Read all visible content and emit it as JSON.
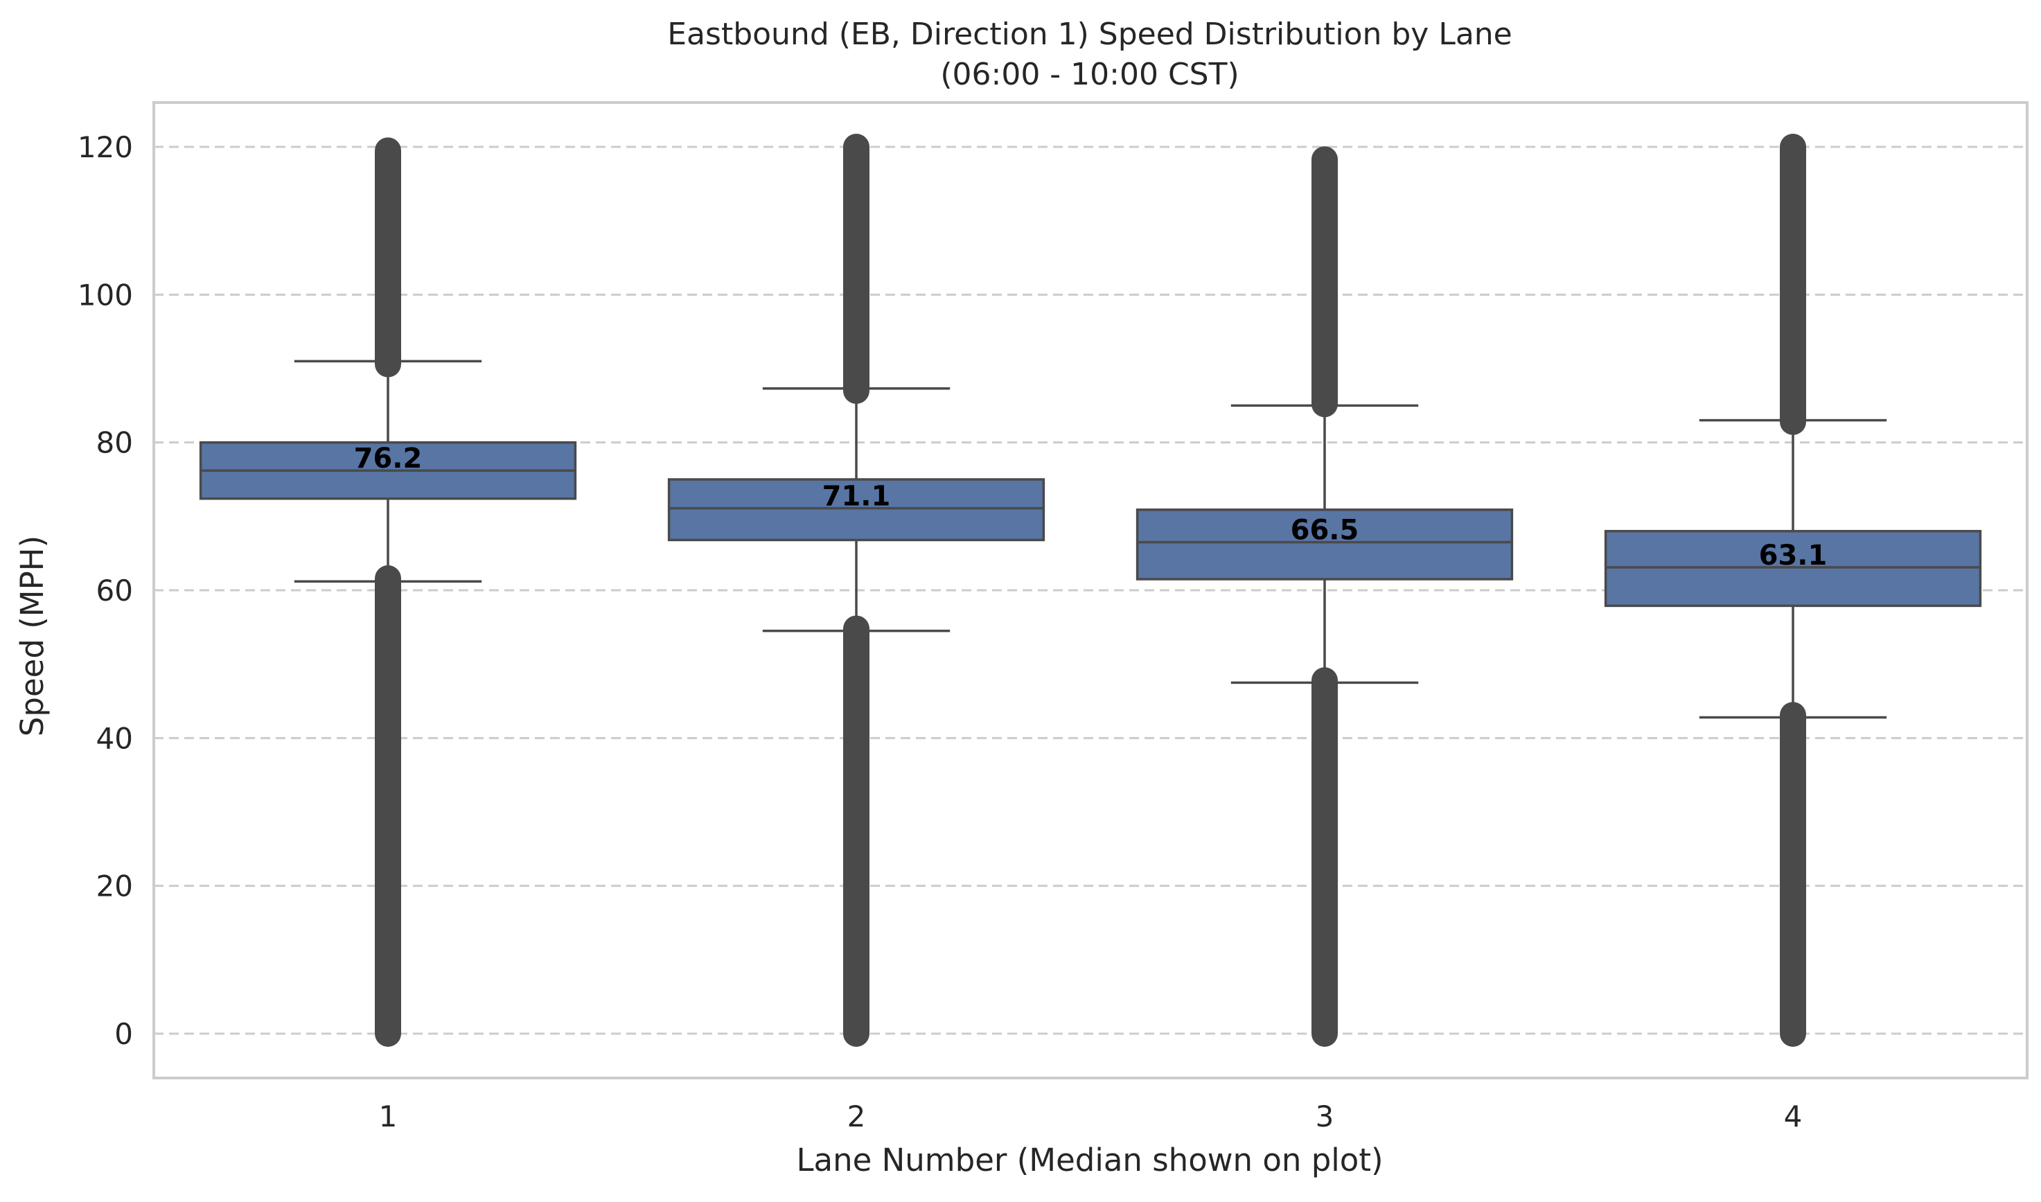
{
  "chart_data": {
    "type": "box",
    "title": "Eastbound (EB, Direction 1) Speed Distribution by Lane",
    "subtitle": "(06:00 - 10:00 CST)",
    "xlabel": "Lane Number (Median shown on plot)",
    "ylabel": "Speed (MPH)",
    "ylim": [
      -6,
      126
    ],
    "yticks": [
      0,
      20,
      40,
      60,
      80,
      100,
      120
    ],
    "grid": "horizontal-dashed",
    "categories": [
      "1",
      "2",
      "3",
      "4"
    ],
    "boxes": [
      {
        "category": "1",
        "q1": 72.4,
        "median": 76.2,
        "q3": 80.0,
        "whisker_low": 61.2,
        "whisker_high": 91.0,
        "outliers_low": [
          0,
          61.6
        ],
        "outliers_high": [
          90.6,
          119.5
        ],
        "median_label": "76.2"
      },
      {
        "category": "2",
        "q1": 66.8,
        "median": 71.1,
        "q3": 75.0,
        "whisker_low": 54.5,
        "whisker_high": 87.3,
        "outliers_low": [
          0,
          54.8
        ],
        "outliers_high": [
          87.0,
          120.0
        ],
        "median_label": "71.1"
      },
      {
        "category": "3",
        "q1": 61.5,
        "median": 66.5,
        "q3": 70.9,
        "whisker_low": 47.5,
        "whisker_high": 85.0,
        "outliers_low": [
          0,
          47.8
        ],
        "outliers_high": [
          85.2,
          118.3
        ],
        "median_label": "66.5"
      },
      {
        "category": "4",
        "q1": 57.9,
        "median": 63.1,
        "q3": 68.0,
        "whisker_low": 42.8,
        "whisker_high": 83.0,
        "outliers_low": [
          0,
          43.1
        ],
        "outliers_high": [
          82.8,
          120.0
        ],
        "median_label": "63.1"
      }
    ],
    "colors": {
      "box_fill": "#5875a4",
      "line": "#4a4a4a",
      "grid": "#cccccc",
      "frame": "#cccccc",
      "text": "#262626",
      "median_label": "#000000"
    }
  }
}
